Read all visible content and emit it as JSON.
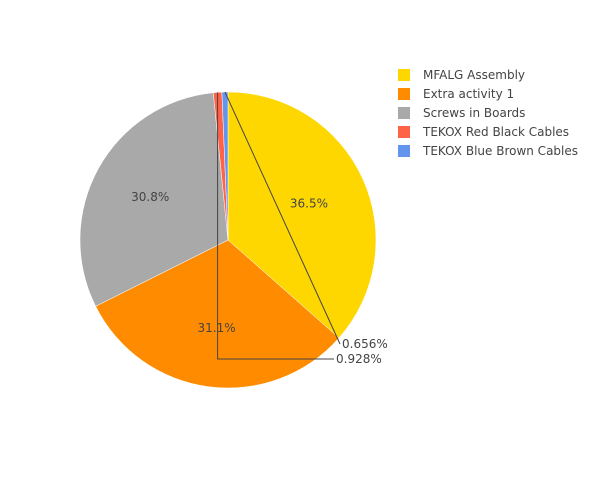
{
  "chart_data": {
    "type": "pie",
    "labels": [
      "MFALG Assembly",
      "Extra activity 1",
      "Screws in Boards",
      "TEKOX Red Black Cables",
      "TEKOX Blue Brown Cables"
    ],
    "values": [
      36.5,
      31.1,
      30.8,
      0.928,
      0.656
    ],
    "value_labels": [
      "36.5%",
      "31.1%",
      "30.8%",
      "0.928%",
      "0.656%"
    ],
    "colors": [
      "#FFD700",
      "#FF8C00",
      "#A9A9A9",
      "#FF6347",
      "#6495ED"
    ],
    "legend": {
      "placement": "top-right"
    },
    "text_color": "#444444",
    "direction": "clockwise",
    "start_angle": "12 o'clock"
  }
}
